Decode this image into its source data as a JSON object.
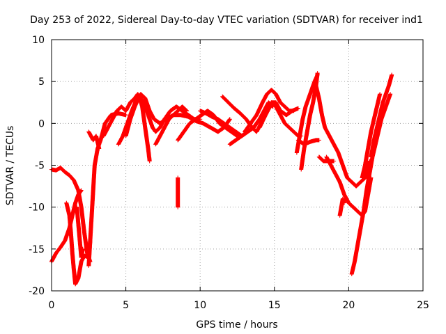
{
  "chart_data": {
    "type": "scatter",
    "title": "Day 253 of 2022, Sidereal Day-to-day VTEC variation (SDTVAR) for receiver ind1",
    "xlabel": "GPS time / hours",
    "ylabel": "SDTVAR / TECUs",
    "xlim": [
      0,
      25
    ],
    "ylim": [
      -20,
      10
    ],
    "xticks": [
      "0",
      "5",
      "10",
      "15",
      "20",
      "25"
    ],
    "yticks": [
      "-20",
      "-15",
      "-10",
      "-5",
      "0",
      "5",
      "10"
    ],
    "grid": true,
    "marker": "+",
    "series_color": "#ff0000",
    "tracks": [
      {
        "name": "track-01",
        "points": [
          [
            0.0,
            -5.5
          ],
          [
            0.3,
            -5.6
          ],
          [
            0.6,
            -5.3
          ],
          [
            0.9,
            -5.8
          ],
          [
            1.2,
            -6.2
          ],
          [
            1.5,
            -6.8
          ],
          [
            1.8,
            -8.0
          ],
          [
            2.0,
            -10.0
          ],
          [
            2.2,
            -13.0
          ],
          [
            2.4,
            -15.5
          ],
          [
            2.6,
            -16.5
          ]
        ]
      },
      {
        "name": "track-02",
        "points": [
          [
            0.0,
            -16.5
          ],
          [
            0.3,
            -15.5
          ],
          [
            0.6,
            -14.8
          ],
          [
            0.9,
            -14.0
          ],
          [
            1.2,
            -12.5
          ],
          [
            1.4,
            -11.0
          ],
          [
            1.6,
            -9.5
          ],
          [
            1.8,
            -8.5
          ],
          [
            2.0,
            -8.0
          ]
        ]
      },
      {
        "name": "track-03",
        "points": [
          [
            1.0,
            -9.5
          ],
          [
            1.2,
            -11.0
          ],
          [
            1.3,
            -13.0
          ],
          [
            1.4,
            -15.5
          ],
          [
            1.5,
            -17.5
          ],
          [
            1.6,
            -19.2
          ],
          [
            1.8,
            -18.5
          ],
          [
            2.0,
            -16.5
          ],
          [
            2.2,
            -15.8
          ],
          [
            2.5,
            -16.0
          ],
          [
            2.6,
            -14.0
          ]
        ]
      },
      {
        "name": "track-04",
        "points": [
          [
            1.7,
            -10.0
          ],
          [
            1.8,
            -12.0
          ],
          [
            1.9,
            -14.0
          ],
          [
            2.0,
            -16.0
          ],
          [
            2.1,
            -15.0
          ]
        ]
      },
      {
        "name": "track-05",
        "points": [
          [
            2.5,
            -17.0
          ],
          [
            2.6,
            -14.0
          ],
          [
            2.7,
            -11.0
          ],
          [
            2.8,
            -8.0
          ],
          [
            2.9,
            -5.0
          ],
          [
            3.1,
            -3.0
          ],
          [
            3.3,
            -2.0
          ],
          [
            3.6,
            0.0
          ],
          [
            4.0,
            1.0
          ],
          [
            4.5,
            1.2
          ],
          [
            5.0,
            1.0
          ]
        ]
      },
      {
        "name": "track-06",
        "points": [
          [
            2.5,
            -1.0
          ],
          [
            2.8,
            -2.0
          ],
          [
            3.0,
            -1.5
          ],
          [
            3.2,
            -3.0
          ]
        ]
      },
      {
        "name": "track-07",
        "points": [
          [
            3.5,
            -1.5
          ],
          [
            3.8,
            -0.5
          ],
          [
            4.1,
            0.5
          ],
          [
            4.4,
            1.5
          ],
          [
            4.7,
            2.0
          ],
          [
            5.0,
            1.5
          ],
          [
            5.3,
            2.5
          ],
          [
            5.6,
            3.0
          ],
          [
            5.8,
            3.5
          ],
          [
            6.0,
            3.0
          ],
          [
            6.2,
            2.5
          ],
          [
            6.4,
            1.5
          ],
          [
            6.6,
            0.5
          ],
          [
            6.8,
            -0.5
          ],
          [
            7.0,
            -1.0
          ],
          [
            7.3,
            -0.5
          ],
          [
            7.6,
            0.5
          ],
          [
            8.0,
            1.5
          ],
          [
            8.4,
            2.0
          ],
          [
            8.8,
            1.5
          ],
          [
            9.2,
            1.0
          ],
          [
            9.6,
            0.5
          ],
          [
            10.0,
            0.5
          ]
        ]
      },
      {
        "name": "track-08",
        "points": [
          [
            5.0,
            -1.5
          ],
          [
            5.3,
            0.5
          ],
          [
            5.6,
            2.0
          ],
          [
            5.9,
            3.2
          ],
          [
            6.1,
            2.0
          ],
          [
            6.3,
            -0.5
          ],
          [
            6.5,
            -3.0
          ],
          [
            6.6,
            -4.5
          ]
        ]
      },
      {
        "name": "track-09",
        "points": [
          [
            4.5,
            -2.5
          ],
          [
            4.8,
            -1.5
          ],
          [
            5.1,
            0.0
          ],
          [
            5.4,
            1.5
          ],
          [
            5.7,
            2.8
          ],
          [
            6.0,
            3.5
          ],
          [
            6.3,
            3.0
          ],
          [
            6.6,
            1.5
          ],
          [
            6.9,
            0.5
          ],
          [
            7.3,
            0.0
          ],
          [
            7.7,
            0.5
          ],
          [
            8.2,
            1.0
          ],
          [
            8.7,
            1.0
          ],
          [
            9.2,
            0.8
          ],
          [
            9.7,
            0.3
          ],
          [
            10.2,
            0.0
          ],
          [
            10.7,
            -0.5
          ],
          [
            11.2,
            -1.0
          ],
          [
            11.6,
            -0.5
          ],
          [
            12.0,
            0.5
          ]
        ]
      },
      {
        "name": "track-10",
        "points": [
          [
            7.0,
            -2.5
          ],
          [
            7.3,
            -1.5
          ],
          [
            7.6,
            -0.5
          ],
          [
            7.9,
            0.5
          ],
          [
            8.2,
            1.0
          ],
          [
            8.5,
            1.5
          ],
          [
            8.8,
            2.0
          ],
          [
            9.1,
            1.5
          ]
        ]
      },
      {
        "name": "track-11",
        "points": [
          [
            8.5,
            -6.5
          ],
          [
            8.5,
            -7.5
          ],
          [
            8.5,
            -8.5
          ],
          [
            8.5,
            -9.5
          ],
          [
            8.5,
            -10.0
          ]
        ]
      },
      {
        "name": "track-12",
        "points": [
          [
            8.5,
            -2.0
          ],
          [
            8.9,
            -1.0
          ],
          [
            9.3,
            0.0
          ],
          [
            9.7,
            0.5
          ],
          [
            10.1,
            1.0
          ],
          [
            10.5,
            1.5
          ],
          [
            10.9,
            1.0
          ],
          [
            11.3,
            0.0
          ],
          [
            11.7,
            -0.5
          ],
          [
            12.1,
            -1.0
          ],
          [
            12.5,
            -1.5
          ]
        ]
      },
      {
        "name": "track-13",
        "points": [
          [
            10.0,
            1.5
          ],
          [
            10.4,
            1.2
          ],
          [
            10.8,
            0.8
          ],
          [
            11.2,
            0.5
          ],
          [
            11.6,
            0.0
          ],
          [
            12.0,
            -0.5
          ],
          [
            12.4,
            -1.0
          ],
          [
            12.8,
            -1.5
          ],
          [
            13.2,
            -1.0
          ],
          [
            13.6,
            -0.5
          ],
          [
            14.0,
            0.5
          ],
          [
            14.3,
            1.5
          ],
          [
            14.6,
            2.5
          ],
          [
            14.9,
            2.0
          ]
        ]
      },
      {
        "name": "track-14",
        "points": [
          [
            11.5,
            3.2
          ],
          [
            11.9,
            2.5
          ],
          [
            12.3,
            1.8
          ],
          [
            12.7,
            1.2
          ],
          [
            13.1,
            0.5
          ],
          [
            13.5,
            -0.5
          ],
          [
            13.8,
            -1.0
          ],
          [
            14.1,
            0.0
          ],
          [
            14.4,
            1.0
          ],
          [
            14.7,
            2.0
          ]
        ]
      },
      {
        "name": "track-15",
        "points": [
          [
            12.0,
            -2.5
          ],
          [
            12.4,
            -2.0
          ],
          [
            12.8,
            -1.5
          ],
          [
            13.2,
            -1.0
          ],
          [
            13.6,
            -0.5
          ],
          [
            14.0,
            0.5
          ],
          [
            14.4,
            1.5
          ],
          [
            14.8,
            2.5
          ],
          [
            15.1,
            2.0
          ],
          [
            15.4,
            1.0
          ],
          [
            15.7,
            0.0
          ],
          [
            16.0,
            -0.5
          ],
          [
            16.3,
            -1.0
          ],
          [
            16.6,
            -1.5
          ],
          [
            16.8,
            -1.5
          ]
        ]
      },
      {
        "name": "track-16",
        "points": [
          [
            13.0,
            -1.0
          ],
          [
            13.4,
            0.0
          ],
          [
            13.8,
            1.0
          ],
          [
            14.2,
            2.5
          ],
          [
            14.5,
            3.5
          ],
          [
            14.8,
            4.0
          ],
          [
            15.1,
            3.5
          ],
          [
            15.4,
            2.5
          ],
          [
            15.7,
            2.0
          ],
          [
            16.0,
            1.5
          ],
          [
            16.3,
            1.5
          ]
        ]
      },
      {
        "name": "track-17",
        "points": [
          [
            14.0,
            -0.5
          ],
          [
            14.4,
            1.0
          ],
          [
            14.8,
            2.5
          ],
          [
            15.1,
            2.5
          ],
          [
            15.4,
            1.5
          ],
          [
            15.8,
            1.0
          ],
          [
            16.2,
            1.5
          ],
          [
            16.6,
            1.8
          ]
        ]
      },
      {
        "name": "track-18",
        "points": [
          [
            16.5,
            -3.5
          ],
          [
            16.7,
            -1.5
          ],
          [
            16.9,
            0.5
          ],
          [
            17.1,
            2.0
          ],
          [
            17.3,
            3.0
          ],
          [
            17.5,
            4.0
          ],
          [
            17.7,
            5.0
          ],
          [
            17.9,
            5.8
          ]
        ]
      },
      {
        "name": "track-19",
        "points": [
          [
            16.8,
            -5.5
          ],
          [
            17.0,
            -3.0
          ],
          [
            17.2,
            -1.0
          ],
          [
            17.4,
            1.0
          ],
          [
            17.6,
            2.5
          ],
          [
            17.8,
            4.5
          ],
          [
            17.9,
            6.0
          ]
        ]
      },
      {
        "name": "track-20",
        "points": [
          [
            16.6,
            -2.0
          ],
          [
            17.0,
            -2.5
          ],
          [
            17.4,
            -2.2
          ],
          [
            17.8,
            -2.0
          ],
          [
            18.0,
            -2.0
          ]
        ]
      },
      {
        "name": "track-21",
        "points": [
          [
            17.8,
            4.5
          ],
          [
            18.0,
            3.0
          ],
          [
            18.2,
            1.0
          ],
          [
            18.4,
            -0.5
          ],
          [
            18.7,
            -1.5
          ],
          [
            19.0,
            -2.5
          ],
          [
            19.3,
            -3.5
          ],
          [
            19.6,
            -5.0
          ],
          [
            19.9,
            -6.5
          ],
          [
            20.2,
            -7.0
          ],
          [
            20.5,
            -7.5
          ],
          [
            20.8,
            -7.0
          ],
          [
            21.1,
            -6.5
          ],
          [
            21.4,
            -4.5
          ]
        ]
      },
      {
        "name": "track-22",
        "points": [
          [
            18.5,
            -4.0
          ],
          [
            18.8,
            -5.0
          ],
          [
            19.1,
            -6.0
          ],
          [
            19.4,
            -7.0
          ],
          [
            19.7,
            -8.5
          ],
          [
            20.0,
            -9.5
          ],
          [
            20.3,
            -10.0
          ],
          [
            20.6,
            -10.5
          ],
          [
            20.9,
            -11.0
          ],
          [
            21.1,
            -10.5
          ],
          [
            21.3,
            -8.5
          ],
          [
            21.5,
            -6.5
          ]
        ]
      },
      {
        "name": "track-23",
        "points": [
          [
            18.0,
            -4.0
          ],
          [
            18.3,
            -4.5
          ],
          [
            18.7,
            -4.5
          ],
          [
            19.0,
            -4.5
          ]
        ]
      },
      {
        "name": "track-24",
        "points": [
          [
            19.4,
            -11.0
          ],
          [
            19.5,
            -10.0
          ],
          [
            19.6,
            -9.0
          ],
          [
            19.7,
            -9.5
          ]
        ]
      },
      {
        "name": "track-25",
        "points": [
          [
            20.2,
            -18.0
          ],
          [
            20.4,
            -16.5
          ],
          [
            20.6,
            -14.5
          ],
          [
            20.8,
            -12.5
          ],
          [
            21.0,
            -10.5
          ],
          [
            21.2,
            -8.0
          ],
          [
            21.4,
            -6.0
          ],
          [
            21.6,
            -4.0
          ],
          [
            21.8,
            -2.5
          ],
          [
            22.0,
            -1.0
          ],
          [
            22.2,
            0.5
          ],
          [
            22.4,
            1.5
          ],
          [
            22.6,
            2.5
          ],
          [
            22.8,
            3.5
          ]
        ]
      },
      {
        "name": "track-26",
        "points": [
          [
            21.5,
            -4.0
          ],
          [
            21.7,
            -2.0
          ],
          [
            21.9,
            -0.5
          ],
          [
            22.1,
            1.0
          ],
          [
            22.3,
            2.5
          ],
          [
            22.5,
            3.5
          ],
          [
            22.7,
            4.5
          ],
          [
            22.9,
            5.8
          ]
        ]
      },
      {
        "name": "track-27",
        "points": [
          [
            20.9,
            -6.5
          ],
          [
            21.1,
            -5.0
          ],
          [
            21.3,
            -3.0
          ],
          [
            21.5,
            -1.0
          ],
          [
            21.7,
            0.5
          ],
          [
            21.9,
            2.0
          ],
          [
            22.1,
            3.5
          ]
        ]
      }
    ]
  }
}
